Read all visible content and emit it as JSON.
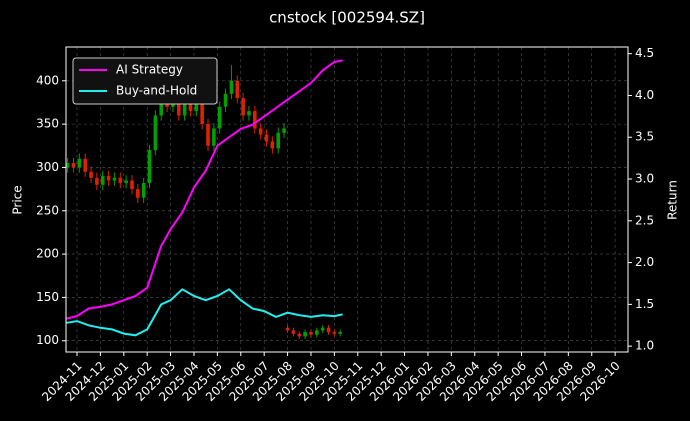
{
  "chart_data": {
    "type": "candlestick",
    "title": "cnstock [002594.SZ]",
    "ylabel": "Price",
    "y2label": "Return",
    "up_color": "#00a000",
    "down_color": "#e02000",
    "grid": true,
    "legend": "upper left",
    "x": [
      -0.4,
      -0.15,
      0.1,
      0.35,
      0.6,
      0.85,
      1.1,
      1.35,
      1.6,
      1.85,
      2.1,
      2.35,
      2.6,
      2.85,
      3.1,
      3.35,
      3.6,
      3.85,
      4.1,
      4.35,
      4.6,
      4.85,
      5.1,
      5.35,
      5.6,
      5.85,
      6.1,
      6.35,
      6.6,
      6.85,
      7.1,
      7.35,
      7.6,
      7.85,
      8.1,
      8.35,
      8.6,
      8.85,
      9.0,
      9.25,
      9.5,
      9.75,
      10.0,
      10.25,
      10.5,
      10.75,
      11.0,
      11.25
    ],
    "open": [
      300,
      305,
      300,
      310,
      295,
      288,
      280,
      290,
      285,
      288,
      282,
      285,
      275,
      265,
      282,
      320,
      360,
      380,
      370,
      385,
      360,
      375,
      365,
      385,
      350,
      325,
      345,
      370,
      385,
      400,
      380,
      360,
      365,
      345,
      338,
      330,
      322,
      340,
      115,
      112,
      108,
      105,
      110,
      107,
      112,
      115,
      110,
      108
    ],
    "high": [
      311,
      311,
      316,
      316,
      301,
      294,
      296,
      296,
      294,
      294,
      291,
      291,
      281,
      288,
      326,
      366,
      386,
      386,
      391,
      391,
      381,
      381,
      391,
      391,
      356,
      351,
      376,
      391,
      418,
      406,
      386,
      371,
      371,
      351,
      344,
      336,
      346,
      351,
      118,
      115,
      111,
      113,
      113,
      115,
      118,
      118,
      113,
      113
    ],
    "low": [
      294,
      294,
      294,
      289,
      282,
      274,
      274,
      279,
      279,
      276,
      276,
      269,
      259,
      259,
      276,
      314,
      354,
      364,
      364,
      354,
      354,
      359,
      359,
      344,
      319,
      319,
      339,
      364,
      379,
      374,
      354,
      354,
      339,
      332,
      324,
      316,
      316,
      334,
      109,
      105,
      102,
      102,
      104,
      104,
      109,
      107,
      105,
      105
    ],
    "close": [
      305,
      300,
      310,
      295,
      288,
      280,
      290,
      285,
      288,
      282,
      285,
      275,
      265,
      282,
      320,
      360,
      380,
      370,
      385,
      360,
      375,
      365,
      385,
      350,
      325,
      345,
      370,
      385,
      400,
      380,
      360,
      365,
      345,
      338,
      330,
      322,
      340,
      345,
      112,
      108,
      105,
      110,
      107,
      112,
      115,
      110,
      108,
      110
    ],
    "series": [
      {
        "name": "AI Strategy",
        "color": "#ff00ff",
        "axis": "y2",
        "x": [
          -0.45,
          0,
          0.5,
          1,
          1.5,
          2,
          2.5,
          3,
          3.3,
          3.6,
          4,
          4.5,
          5,
          5.5,
          6,
          6.5,
          7,
          7.5,
          8,
          8.5,
          9,
          9.5,
          10,
          10.5,
          11,
          11.35
        ],
        "values": [
          1.33,
          1.36,
          1.45,
          1.47,
          1.5,
          1.55,
          1.6,
          1.7,
          1.95,
          2.2,
          2.4,
          2.6,
          2.9,
          3.1,
          3.4,
          3.5,
          3.6,
          3.65,
          3.75,
          3.85,
          3.95,
          4.05,
          4.15,
          4.3,
          4.4,
          4.42
        ]
      },
      {
        "name": "Buy-and-Hold",
        "color": "#20f0f0",
        "axis": "y2",
        "x": [
          -0.45,
          0,
          0.5,
          1,
          1.5,
          2,
          2.5,
          3,
          3.3,
          3.6,
          4,
          4.5,
          5,
          5.5,
          6,
          6.5,
          7,
          7.5,
          8,
          8.5,
          9,
          9.5,
          10,
          10.5,
          11,
          11.35
        ],
        "values": [
          1.28,
          1.3,
          1.25,
          1.22,
          1.2,
          1.15,
          1.13,
          1.2,
          1.35,
          1.5,
          1.55,
          1.68,
          1.6,
          1.55,
          1.6,
          1.68,
          1.55,
          1.45,
          1.42,
          1.35,
          1.4,
          1.37,
          1.35,
          1.37,
          1.36,
          1.38
        ]
      }
    ],
    "xlim": [
      -0.47,
      23.55
    ],
    "xticks": [
      {
        "value": 0,
        "label": "2024-11"
      },
      {
        "value": 1,
        "label": "2024-12"
      },
      {
        "value": 2,
        "label": "2025-01"
      },
      {
        "value": 3,
        "label": "2025-02"
      },
      {
        "value": 4,
        "label": "2025-03"
      },
      {
        "value": 5,
        "label": "2025-04"
      },
      {
        "value": 6,
        "label": "2025-05"
      },
      {
        "value": 7,
        "label": "2025-06"
      },
      {
        "value": 8,
        "label": "2025-07"
      },
      {
        "value": 9,
        "label": "2025-08"
      },
      {
        "value": 10,
        "label": "2025-09"
      },
      {
        "value": 11,
        "label": "2025-10"
      },
      {
        "value": 12,
        "label": "2025-11"
      },
      {
        "value": 13,
        "label": "2025-12"
      },
      {
        "value": 14,
        "label": "2026-01"
      },
      {
        "value": 15,
        "label": "2026-02"
      },
      {
        "value": 16,
        "label": "2026-03"
      },
      {
        "value": 17,
        "label": "2026-04"
      },
      {
        "value": 18,
        "label": "2026-05"
      },
      {
        "value": 19,
        "label": "2026-06"
      },
      {
        "value": 20,
        "label": "2026-07"
      },
      {
        "value": 21,
        "label": "2026-08"
      },
      {
        "value": 22,
        "label": "2026-09"
      },
      {
        "value": 23,
        "label": "2026-10"
      }
    ],
    "ylim": [
      87,
      439
    ],
    "yticks": [
      100,
      150,
      200,
      250,
      300,
      350,
      400
    ],
    "y2lim": [
      0.93,
      4.58
    ],
    "y2ticks": [
      {
        "value": 1.0,
        "label": "1.0"
      },
      1.5,
      {
        "value": 2.0,
        "label": "2.0"
      },
      2.5,
      {
        "value": 3.0,
        "label": "3.0"
      },
      3.5,
      {
        "value": 4.0,
        "label": "4.0"
      },
      4.5
    ]
  }
}
